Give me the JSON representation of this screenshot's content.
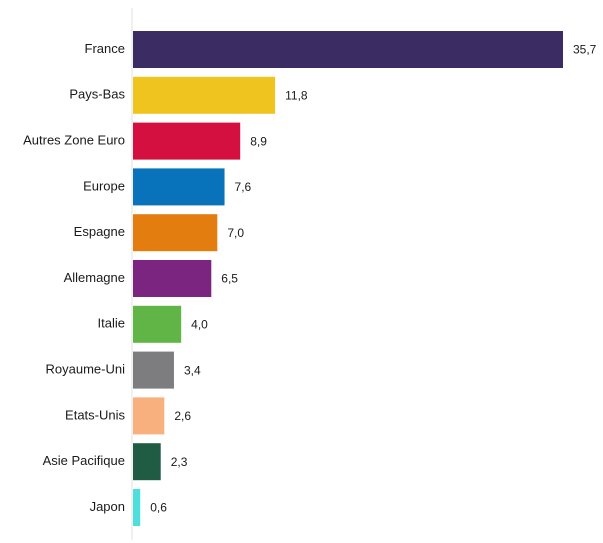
{
  "chart_data": {
    "type": "bar",
    "orientation": "horizontal",
    "title": "",
    "xlabel": "",
    "ylabel": "",
    "grid": false,
    "legend": "none",
    "xlim": [
      0,
      35.7
    ],
    "categories": [
      "France",
      "Pays-Bas",
      "Autres Zone Euro",
      "Europe",
      "Espagne",
      "Allemagne",
      "Italie",
      "Royaume-Uni",
      "Etats-Unis",
      "Asie Pacifique",
      "Japon"
    ],
    "values": [
      35.7,
      11.8,
      8.9,
      7.6,
      7.0,
      6.5,
      4.0,
      3.4,
      2.6,
      2.3,
      0.6
    ],
    "value_labels": [
      "35,7",
      "11,8",
      "8,9",
      "7,6",
      "7,0",
      "6,5",
      "4,0",
      "3,4",
      "2,6",
      "2,3",
      "0,6"
    ],
    "colors": [
      "#3b2d63",
      "#efc41f",
      "#d3103f",
      "#0872bb",
      "#e47d10",
      "#7b2580",
      "#61b546",
      "#7d7d7f",
      "#f8b07e",
      "#1f5c43",
      "#4fdede"
    ]
  }
}
